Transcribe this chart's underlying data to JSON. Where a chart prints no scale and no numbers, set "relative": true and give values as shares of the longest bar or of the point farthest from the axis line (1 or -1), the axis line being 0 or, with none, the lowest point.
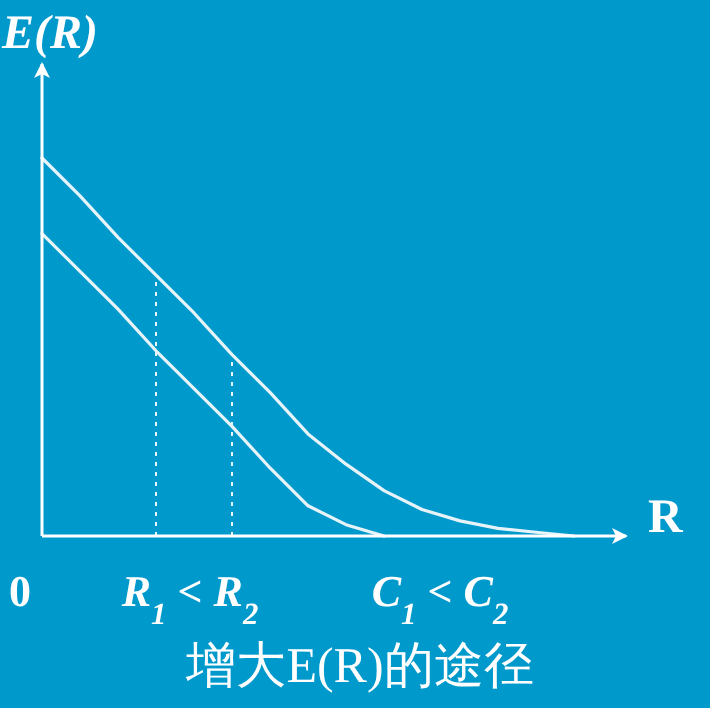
{
  "chart_data": {
    "type": "line",
    "relative": true,
    "title": "增大E(R)的途径",
    "ylabel": "E(R)",
    "xlabel": "R",
    "annotations": [
      "0",
      "R$_{1}$ < R$_{2}$",
      "C$_{1}$ < C$_{2}$"
    ],
    "categories": [
      null,
      null,
      null,
      null,
      null,
      null,
      null,
      null,
      null,
      null,
      null,
      null,
      null,
      null,
      null,
      null
    ],
    "series": [
      {
        "color": "#e6f4fa",
        "values": [
          1.0,
          0.9,
          0.79,
          0.69,
          0.59,
          0.48,
          0.38,
          0.27,
          0.19,
          0.12,
          0.07,
          0.04,
          0.02,
          0.01,
          0,
          null
        ]
      },
      {
        "color": "#e6f4fa",
        "values": [
          0.8,
          0.7,
          0.6,
          0.49,
          0.39,
          0.29,
          0.18,
          0.08,
          0.03,
          0,
          null,
          null,
          null,
          null,
          null,
          null
        ]
      }
    ],
    "grid": false,
    "line_style": "solid",
    "marker": "none"
  }
}
